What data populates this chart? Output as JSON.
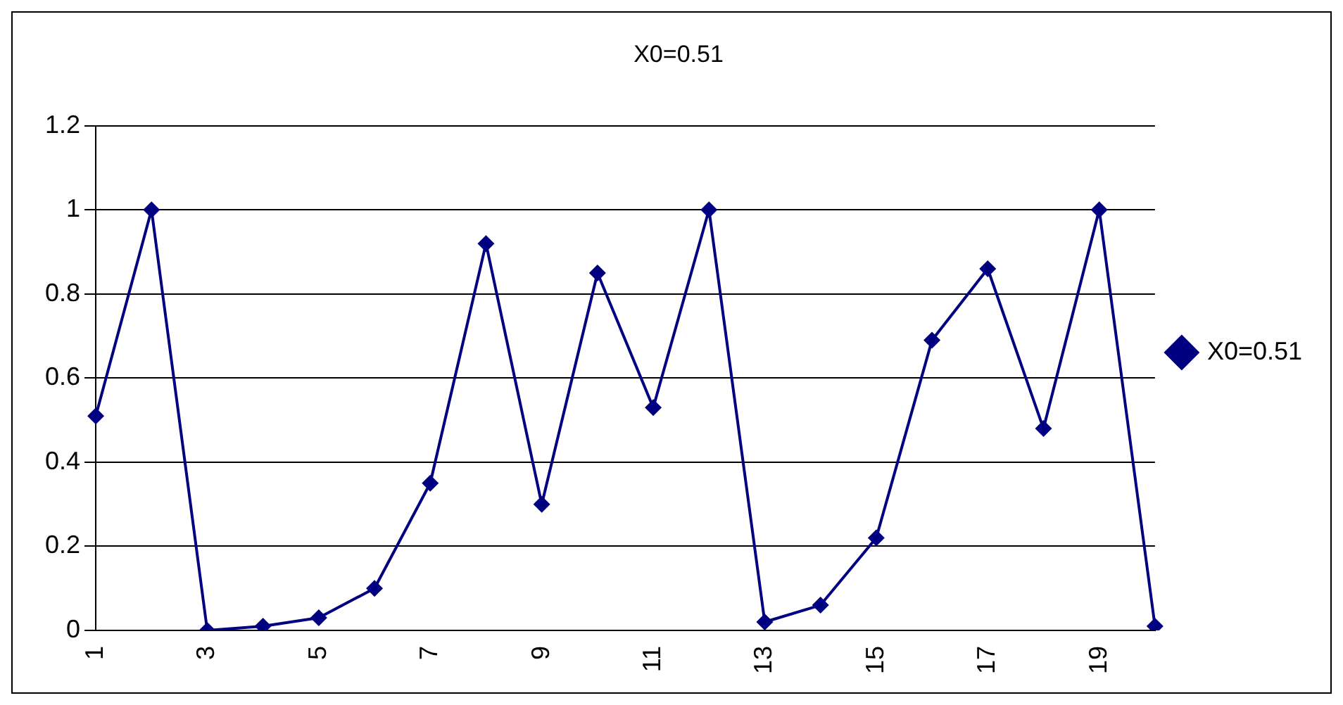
{
  "chart_data": {
    "type": "line",
    "title": "X0=0.51",
    "categories": [
      "1",
      null,
      "3",
      null,
      "5",
      null,
      "7",
      null,
      "9",
      null,
      "11",
      null,
      "13",
      null,
      "15",
      null,
      "17",
      null,
      "19",
      null
    ],
    "series": [
      {
        "name": "X0=0.51",
        "color": "#000080",
        "values": [
          0.51,
          1.0,
          0.0,
          0.01,
          0.03,
          0.1,
          0.35,
          0.92,
          0.3,
          0.85,
          0.53,
          1.0,
          0.02,
          0.06,
          0.22,
          0.69,
          0.86,
          0.48,
          1.0,
          0.01
        ]
      }
    ],
    "ylim": [
      0,
      1.2
    ],
    "yticks": [
      0,
      0.2,
      0.4,
      0.6,
      0.8,
      1,
      1.2
    ],
    "grid": "y",
    "legend": "right",
    "marker": "diamond",
    "line_style": "solid"
  }
}
